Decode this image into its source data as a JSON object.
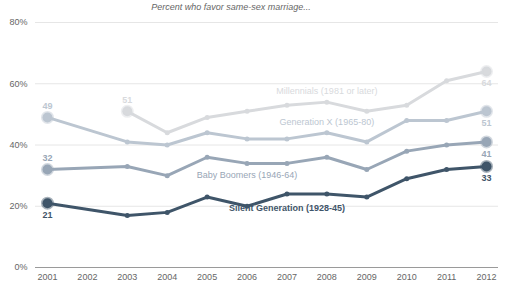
{
  "chart_data": {
    "type": "line",
    "subtitle": "Percent who favor same-sex marriage...",
    "x": [
      2001,
      2003,
      2004,
      2005,
      2006,
      2007,
      2008,
      2009,
      2010,
      2011,
      2012
    ],
    "xlim": [
      2000.7,
      2012.3
    ],
    "xticks": [
      2001,
      2002,
      2003,
      2004,
      2005,
      2006,
      2007,
      2008,
      2009,
      2010,
      2011,
      2012
    ],
    "ylim": [
      0,
      80
    ],
    "yticks": [
      {
        "value": 0,
        "label": "0%"
      },
      {
        "value": 20,
        "label": "20%"
      },
      {
        "value": 40,
        "label": "40%"
      },
      {
        "value": 60,
        "label": "60%"
      },
      {
        "value": 80,
        "label": "80%"
      }
    ],
    "grid": true,
    "marker": "circle",
    "series": [
      {
        "name": "Millennials (1981 or later)",
        "color": "#d8dadd",
        "values": [
          null,
          51,
          44,
          49,
          51,
          53,
          54,
          51,
          53,
          61,
          64
        ]
      },
      {
        "name": "Generation X (1965-80)",
        "color": "#bcc6d1",
        "values": [
          49,
          41,
          40,
          44,
          42,
          42,
          44,
          41,
          48,
          48,
          51
        ]
      },
      {
        "name": "Baby Boomers (1946-64)",
        "color": "#98a6b6",
        "values": [
          32,
          33,
          30,
          36,
          34,
          34,
          36,
          32,
          38,
          40,
          41
        ]
      },
      {
        "name": "Silent Generation (1928-45)",
        "color": "#3f5569",
        "values": [
          21,
          17,
          18,
          23,
          20,
          24,
          24,
          23,
          29,
          32,
          33
        ]
      }
    ],
    "annotations": [
      {
        "series": "Millennials (1981 or later)",
        "x": 2003,
        "y": 51,
        "text": "51"
      },
      {
        "series": "Millennials (1981 or later)",
        "x": 2012,
        "y": 64,
        "text": "64"
      },
      {
        "series": "Generation X (1965-80)",
        "x": 2001,
        "y": 49,
        "text": "49"
      },
      {
        "series": "Generation X (1965-80)",
        "x": 2012,
        "y": 51,
        "text": "51"
      },
      {
        "series": "Baby Boomers (1946-64)",
        "x": 2001,
        "y": 32,
        "text": "32"
      },
      {
        "series": "Baby Boomers (1946-64)",
        "x": 2012,
        "y": 41,
        "text": "41"
      },
      {
        "series": "Silent Generation (1928-45)",
        "x": 2001,
        "y": 21,
        "text": "21"
      },
      {
        "series": "Silent Generation (1928-45)",
        "x": 2012,
        "y": 33,
        "text": "33"
      }
    ]
  }
}
